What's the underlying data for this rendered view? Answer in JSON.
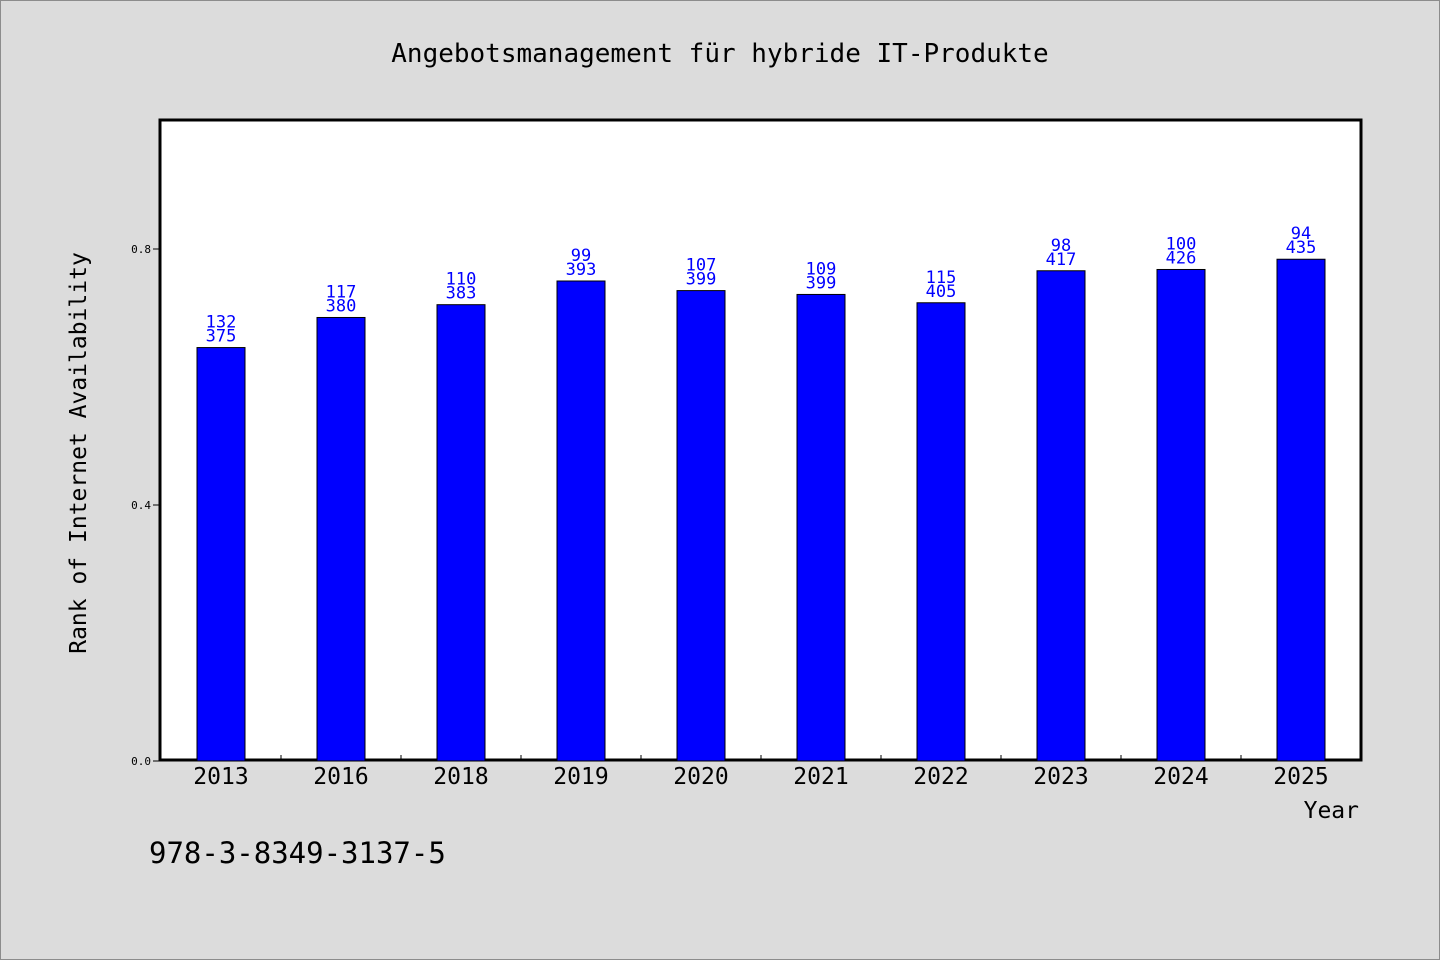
{
  "chart_data": {
    "type": "bar",
    "title": "Angebotsmanagement für hybride IT-Produkte",
    "xlabel": "Year",
    "ylabel": "Rank of Internet Availability",
    "categories": [
      "2013",
      "2016",
      "2018",
      "2019",
      "2020",
      "2021",
      "2022",
      "2023",
      "2024",
      "2025"
    ],
    "values": [
      0.646,
      0.693,
      0.713,
      0.75,
      0.735,
      0.729,
      0.716,
      0.766,
      0.768,
      0.784
    ],
    "label_top": [
      "132",
      "117",
      "110",
      "99",
      "107",
      "109",
      "115",
      "98",
      "100",
      "94"
    ],
    "label_bottom": [
      "375",
      "380",
      "383",
      "393",
      "399",
      "399",
      "405",
      "417",
      "426",
      "435"
    ],
    "ylim": [
      0,
      1.0
    ],
    "yticks": [
      0.0,
      0.4,
      0.8
    ],
    "ytick_labels": [
      "0.0",
      "0.4",
      "0.8"
    ],
    "grid": false,
    "bar_color": "#0000ff",
    "label_color": "#0000ff"
  },
  "footer": {
    "isbn": "978-3-8349-3137-5"
  }
}
